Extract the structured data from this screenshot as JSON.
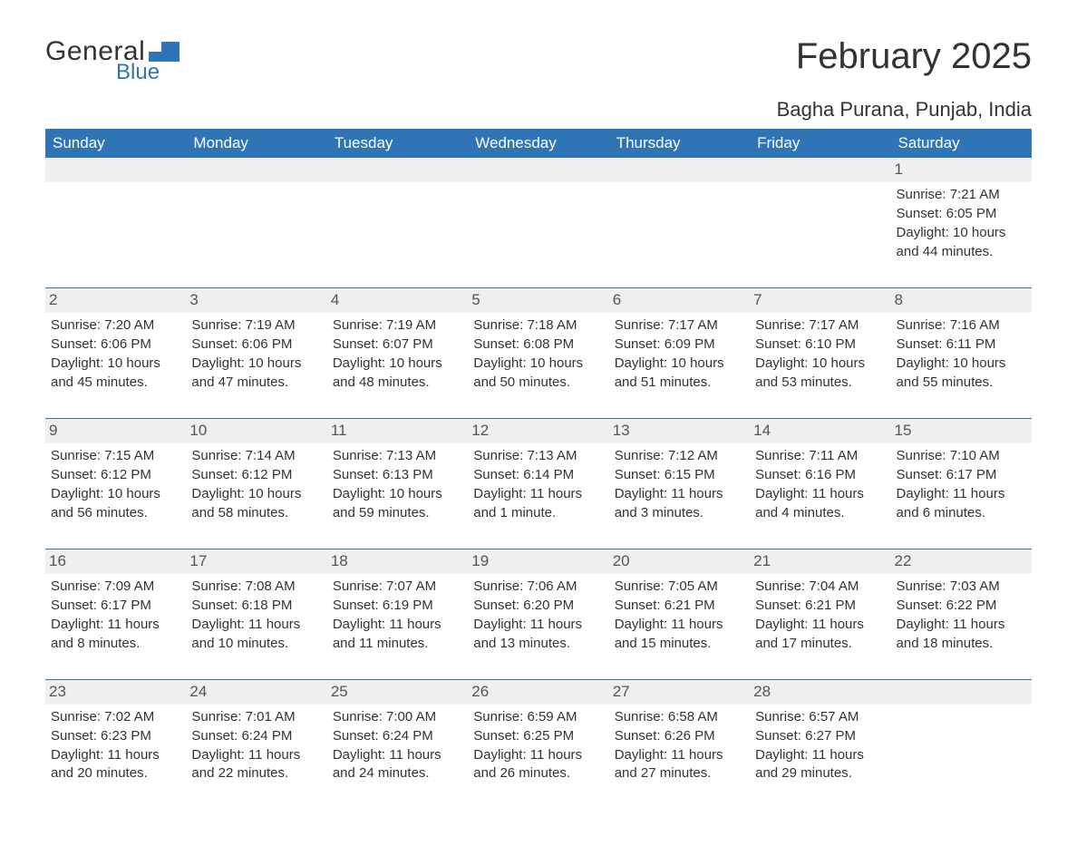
{
  "logo": {
    "text_general": "General",
    "text_blue": "Blue",
    "shape_color": "#2f74b5"
  },
  "header": {
    "month_title": "February 2025",
    "location": "Bagha Purana, Punjab, India"
  },
  "colors": {
    "header_bg": "#2f74b5",
    "header_text": "#ffffff",
    "daynum_bg": "#efefef",
    "row_border": "#2f74b5",
    "body_text": "#333333"
  },
  "calendar": {
    "weekday_labels": [
      "Sunday",
      "Monday",
      "Tuesday",
      "Wednesday",
      "Thursday",
      "Friday",
      "Saturday"
    ],
    "weeks": [
      [
        null,
        null,
        null,
        null,
        null,
        null,
        {
          "day": "1",
          "sunrise": "Sunrise: 7:21 AM",
          "sunset": "Sunset: 6:05 PM",
          "daylight": "Daylight: 10 hours and 44 minutes."
        }
      ],
      [
        {
          "day": "2",
          "sunrise": "Sunrise: 7:20 AM",
          "sunset": "Sunset: 6:06 PM",
          "daylight": "Daylight: 10 hours and 45 minutes."
        },
        {
          "day": "3",
          "sunrise": "Sunrise: 7:19 AM",
          "sunset": "Sunset: 6:06 PM",
          "daylight": "Daylight: 10 hours and 47 minutes."
        },
        {
          "day": "4",
          "sunrise": "Sunrise: 7:19 AM",
          "sunset": "Sunset: 6:07 PM",
          "daylight": "Daylight: 10 hours and 48 minutes."
        },
        {
          "day": "5",
          "sunrise": "Sunrise: 7:18 AM",
          "sunset": "Sunset: 6:08 PM",
          "daylight": "Daylight: 10 hours and 50 minutes."
        },
        {
          "day": "6",
          "sunrise": "Sunrise: 7:17 AM",
          "sunset": "Sunset: 6:09 PM",
          "daylight": "Daylight: 10 hours and 51 minutes."
        },
        {
          "day": "7",
          "sunrise": "Sunrise: 7:17 AM",
          "sunset": "Sunset: 6:10 PM",
          "daylight": "Daylight: 10 hours and 53 minutes."
        },
        {
          "day": "8",
          "sunrise": "Sunrise: 7:16 AM",
          "sunset": "Sunset: 6:11 PM",
          "daylight": "Daylight: 10 hours and 55 minutes."
        }
      ],
      [
        {
          "day": "9",
          "sunrise": "Sunrise: 7:15 AM",
          "sunset": "Sunset: 6:12 PM",
          "daylight": "Daylight: 10 hours and 56 minutes."
        },
        {
          "day": "10",
          "sunrise": "Sunrise: 7:14 AM",
          "sunset": "Sunset: 6:12 PM",
          "daylight": "Daylight: 10 hours and 58 minutes."
        },
        {
          "day": "11",
          "sunrise": "Sunrise: 7:13 AM",
          "sunset": "Sunset: 6:13 PM",
          "daylight": "Daylight: 10 hours and 59 minutes."
        },
        {
          "day": "12",
          "sunrise": "Sunrise: 7:13 AM",
          "sunset": "Sunset: 6:14 PM",
          "daylight": "Daylight: 11 hours and 1 minute."
        },
        {
          "day": "13",
          "sunrise": "Sunrise: 7:12 AM",
          "sunset": "Sunset: 6:15 PM",
          "daylight": "Daylight: 11 hours and 3 minutes."
        },
        {
          "day": "14",
          "sunrise": "Sunrise: 7:11 AM",
          "sunset": "Sunset: 6:16 PM",
          "daylight": "Daylight: 11 hours and 4 minutes."
        },
        {
          "day": "15",
          "sunrise": "Sunrise: 7:10 AM",
          "sunset": "Sunset: 6:17 PM",
          "daylight": "Daylight: 11 hours and 6 minutes."
        }
      ],
      [
        {
          "day": "16",
          "sunrise": "Sunrise: 7:09 AM",
          "sunset": "Sunset: 6:17 PM",
          "daylight": "Daylight: 11 hours and 8 minutes."
        },
        {
          "day": "17",
          "sunrise": "Sunrise: 7:08 AM",
          "sunset": "Sunset: 6:18 PM",
          "daylight": "Daylight: 11 hours and 10 minutes."
        },
        {
          "day": "18",
          "sunrise": "Sunrise: 7:07 AM",
          "sunset": "Sunset: 6:19 PM",
          "daylight": "Daylight: 11 hours and 11 minutes."
        },
        {
          "day": "19",
          "sunrise": "Sunrise: 7:06 AM",
          "sunset": "Sunset: 6:20 PM",
          "daylight": "Daylight: 11 hours and 13 minutes."
        },
        {
          "day": "20",
          "sunrise": "Sunrise: 7:05 AM",
          "sunset": "Sunset: 6:21 PM",
          "daylight": "Daylight: 11 hours and 15 minutes."
        },
        {
          "day": "21",
          "sunrise": "Sunrise: 7:04 AM",
          "sunset": "Sunset: 6:21 PM",
          "daylight": "Daylight: 11 hours and 17 minutes."
        },
        {
          "day": "22",
          "sunrise": "Sunrise: 7:03 AM",
          "sunset": "Sunset: 6:22 PM",
          "daylight": "Daylight: 11 hours and 18 minutes."
        }
      ],
      [
        {
          "day": "23",
          "sunrise": "Sunrise: 7:02 AM",
          "sunset": "Sunset: 6:23 PM",
          "daylight": "Daylight: 11 hours and 20 minutes."
        },
        {
          "day": "24",
          "sunrise": "Sunrise: 7:01 AM",
          "sunset": "Sunset: 6:24 PM",
          "daylight": "Daylight: 11 hours and 22 minutes."
        },
        {
          "day": "25",
          "sunrise": "Sunrise: 7:00 AM",
          "sunset": "Sunset: 6:24 PM",
          "daylight": "Daylight: 11 hours and 24 minutes."
        },
        {
          "day": "26",
          "sunrise": "Sunrise: 6:59 AM",
          "sunset": "Sunset: 6:25 PM",
          "daylight": "Daylight: 11 hours and 26 minutes."
        },
        {
          "day": "27",
          "sunrise": "Sunrise: 6:58 AM",
          "sunset": "Sunset: 6:26 PM",
          "daylight": "Daylight: 11 hours and 27 minutes."
        },
        {
          "day": "28",
          "sunrise": "Sunrise: 6:57 AM",
          "sunset": "Sunset: 6:27 PM",
          "daylight": "Daylight: 11 hours and 29 minutes."
        },
        null
      ]
    ]
  }
}
